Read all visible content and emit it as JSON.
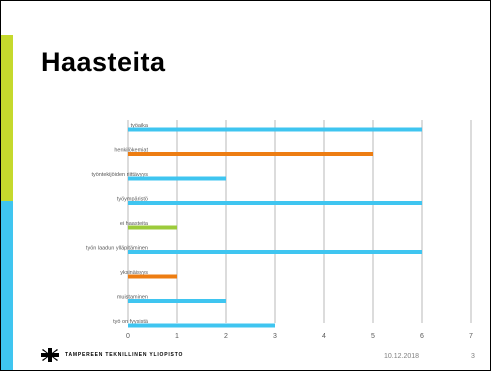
{
  "slide": {
    "title": "Haasteita",
    "footer": {
      "organization": "TAMPEREEN TEKNILLINEN YLIOPISTO",
      "date": "10.12.2018",
      "page_number": "3"
    },
    "stripe_colors": {
      "top": "#c5d92d",
      "bottom": "#3fc5f0"
    },
    "logo_icon": "ttu-logo-icon"
  },
  "chart_data": {
    "type": "bar",
    "orientation": "horizontal",
    "title": "",
    "xlabel": "",
    "ylabel": "",
    "xlim": [
      0,
      7
    ],
    "x_ticks": [
      0,
      1,
      2,
      3,
      4,
      5,
      6,
      7
    ],
    "grid": true,
    "legend": "none",
    "categories": [
      "työaika",
      "henkilökemiat",
      "työntekijöiden riittävyys",
      "työympäristö",
      "ei haasteita",
      "työn laadun ylläpitäminen",
      "yksinäisyys",
      "muistaminen",
      "työ on fyysistä"
    ],
    "values": [
      6,
      5,
      2,
      6,
      1,
      6,
      1,
      2,
      3
    ],
    "colors": [
      "#3fc5f0",
      "#ed7d12",
      "#3fc5f0",
      "#3fc5f0",
      "#9ccb3b",
      "#3fc5f0",
      "#ed7d12",
      "#3fc5f0",
      "#3fc5f0"
    ],
    "gridline_color": "#d0d0d0",
    "tick_label_color": "#595959"
  }
}
